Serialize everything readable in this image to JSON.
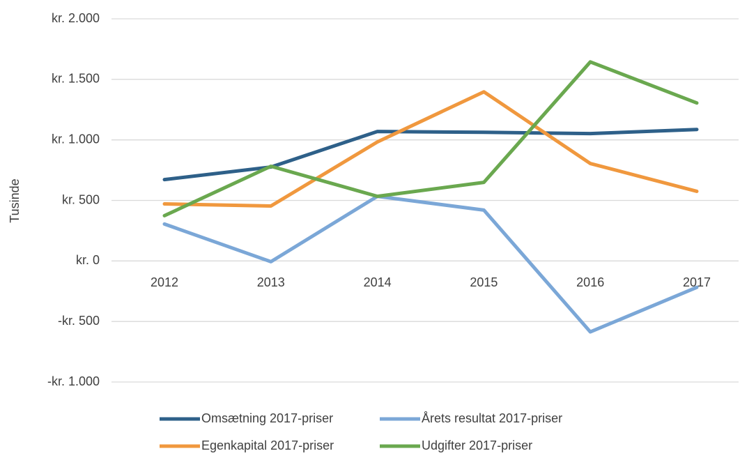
{
  "chart_data": {
    "type": "line",
    "y_label": "Tusinde",
    "categories": [
      "2012",
      "2013",
      "2014",
      "2015",
      "2016",
      "2017"
    ],
    "series": [
      {
        "name": "Omsætning 2017-priser",
        "color": "#2e6089",
        "values": [
          672,
          776,
          1069,
          1063,
          1052,
          1086
        ]
      },
      {
        "name": "Årets resultat 2017-priser",
        "color": "#7ba7d7",
        "values": [
          305,
          -6,
          534,
          420,
          -586,
          -218
        ]
      },
      {
        "name": "Egenkapital 2017-priser",
        "color": "#f0983e",
        "values": [
          471,
          454,
          983,
          1397,
          805,
          575
        ]
      },
      {
        "name": "Udgifter 2017-priser",
        "color": "#6aa84f",
        "values": [
          374,
          782,
          534,
          649,
          1644,
          1305
        ]
      }
    ],
    "ylim": [
      -1000,
      2000
    ],
    "yticks": [
      {
        "value": -1000,
        "label": "-kr. 1.000"
      },
      {
        "value": -500,
        "label": "-kr. 500"
      },
      {
        "value": 0,
        "label": "kr. 0"
      },
      {
        "value": 500,
        "label": "kr. 500"
      },
      {
        "value": 1000,
        "label": "kr. 1.000"
      },
      {
        "value": 1500,
        "label": "kr. 1.500"
      },
      {
        "value": 2000,
        "label": "kr. 2.000"
      }
    ],
    "grid": true
  }
}
